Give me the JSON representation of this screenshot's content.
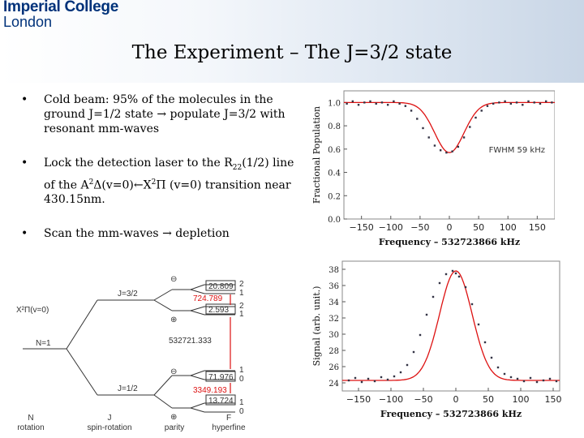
{
  "logo": {
    "line1": "Imperial College",
    "line2": "London"
  },
  "title": "The Experiment – The J=3/2 state",
  "bullets": [
    {
      "mark": "•",
      "text_a": "Cold beam: 95% of the molecules in the ground J=1/2 state ",
      "arrow": "→",
      "text_b": " populate J=3/2 with resonant mm-waves"
    },
    {
      "mark": "•",
      "text_a": "Lock the detection laser to the R",
      "sub": "22",
      "text_b": "(1/2) line of the A",
      "sup1": "2",
      "text_c": "Δ(v=0)",
      "arrow": "←",
      "text_d": "X",
      "sup2": "2",
      "text_e": "Π (v=0) transition near 430.15nm."
    },
    {
      "mark": "•",
      "text_a": "Scan the mm-waves ",
      "arrow": "→",
      "text_b": " depletion"
    }
  ],
  "chart_data": [
    {
      "type": "scatter",
      "xlabel": "Frequency – 532723866 kHz",
      "ylabel": "Fractional Population",
      "annotation": "FWHM 59 kHz",
      "xlim": [
        -180,
        180
      ],
      "ylim": [
        0,
        1.1
      ],
      "xticks": [
        "−150",
        "−100",
        "−50",
        "0",
        "50",
        "100",
        "150"
      ],
      "xtick_values": [
        -150,
        -100,
        -50,
        0,
        50,
        100,
        150
      ],
      "yticks": [
        "0.0",
        "0.2",
        "0.4",
        "0.6",
        "0.8",
        "1.0"
      ],
      "ytick_values": [
        0,
        0.2,
        0.4,
        0.6,
        0.8,
        1.0
      ],
      "points_x": [
        -175,
        -165,
        -155,
        -145,
        -135,
        -125,
        -115,
        -105,
        -95,
        -85,
        -75,
        -65,
        -55,
        -45,
        -35,
        -25,
        -15,
        -5,
        5,
        15,
        25,
        35,
        45,
        55,
        65,
        75,
        85,
        95,
        105,
        115,
        125,
        135,
        145,
        155,
        165,
        175
      ],
      "points_y": [
        0.99,
        1.01,
        0.98,
        1.0,
        1.01,
        0.99,
        1.0,
        0.98,
        1.01,
        0.99,
        0.97,
        0.93,
        0.86,
        0.78,
        0.7,
        0.63,
        0.59,
        0.57,
        0.58,
        0.62,
        0.7,
        0.79,
        0.87,
        0.93,
        0.97,
        0.99,
        1.0,
        1.01,
        0.99,
        1.0,
        0.98,
        1.01,
        1.0,
        0.99,
        1.01,
        1.0
      ],
      "fit": {
        "center": 0,
        "fwhm": 59,
        "baseline": 1.0,
        "depth": 0.43
      }
    },
    {
      "type": "scatter",
      "xlabel": "Frequency – 532723866 kHz",
      "ylabel": "Signal (arb. unit.)",
      "xlim": [
        -175,
        160
      ],
      "ylim": [
        23,
        39
      ],
      "xticks": [
        "−150",
        "−100",
        "−50",
        "0",
        "50",
        "100",
        "150"
      ],
      "xtick_values": [
        -150,
        -100,
        -50,
        0,
        50,
        100,
        150
      ],
      "yticks": [
        "24",
        "26",
        "28",
        "30",
        "32",
        "34",
        "36",
        "38"
      ],
      "ytick_values": [
        24,
        26,
        28,
        30,
        32,
        34,
        36,
        38
      ],
      "points_x": [
        -165,
        -155,
        -145,
        -135,
        -125,
        -115,
        -105,
        -95,
        -85,
        -75,
        -65,
        -55,
        -45,
        -35,
        -25,
        -15,
        -5,
        0,
        5,
        15,
        25,
        35,
        45,
        55,
        65,
        75,
        85,
        95,
        105,
        115,
        125,
        135,
        145,
        155
      ],
      "points_y": [
        24.3,
        24.6,
        24.1,
        24.5,
        24.2,
        24.7,
        24.4,
        24.8,
        25.3,
        26.2,
        27.8,
        29.9,
        32.4,
        34.6,
        36.3,
        37.4,
        37.8,
        37.5,
        37.1,
        35.8,
        33.7,
        31.2,
        29.0,
        27.1,
        25.9,
        25.1,
        24.7,
        24.5,
        24.2,
        24.6,
        24.1,
        24.3,
        24.5,
        24.2
      ],
      "fit": {
        "center": 0,
        "fwhm": 59,
        "baseline": 24.3,
        "amplitude": 13.5
      }
    }
  ],
  "level_diagram": {
    "state_label": "X²Π(v=0)",
    "n_label": "N=1",
    "j_upper": "J=3/2",
    "j_lower": "J=1/2",
    "upper_splitting": "20.809",
    "upper_gap": "724.789",
    "upper_low": "2.593",
    "transition": "532721.333",
    "lower_high": "71.976",
    "lower_gap": "3349.193",
    "lower_low": "13.724",
    "parity_minus": "⊖",
    "parity_plus": "⊕",
    "f_values": [
      "2",
      "1",
      "2",
      "1",
      "1",
      "0",
      "1",
      "0"
    ],
    "columns": [
      {
        "a": "N",
        "b": "rotation"
      },
      {
        "a": "J",
        "b": "spin-rotation"
      },
      {
        "a": "parity",
        "b": ""
      },
      {
        "a": "F",
        "b": "hyperfine"
      }
    ]
  }
}
